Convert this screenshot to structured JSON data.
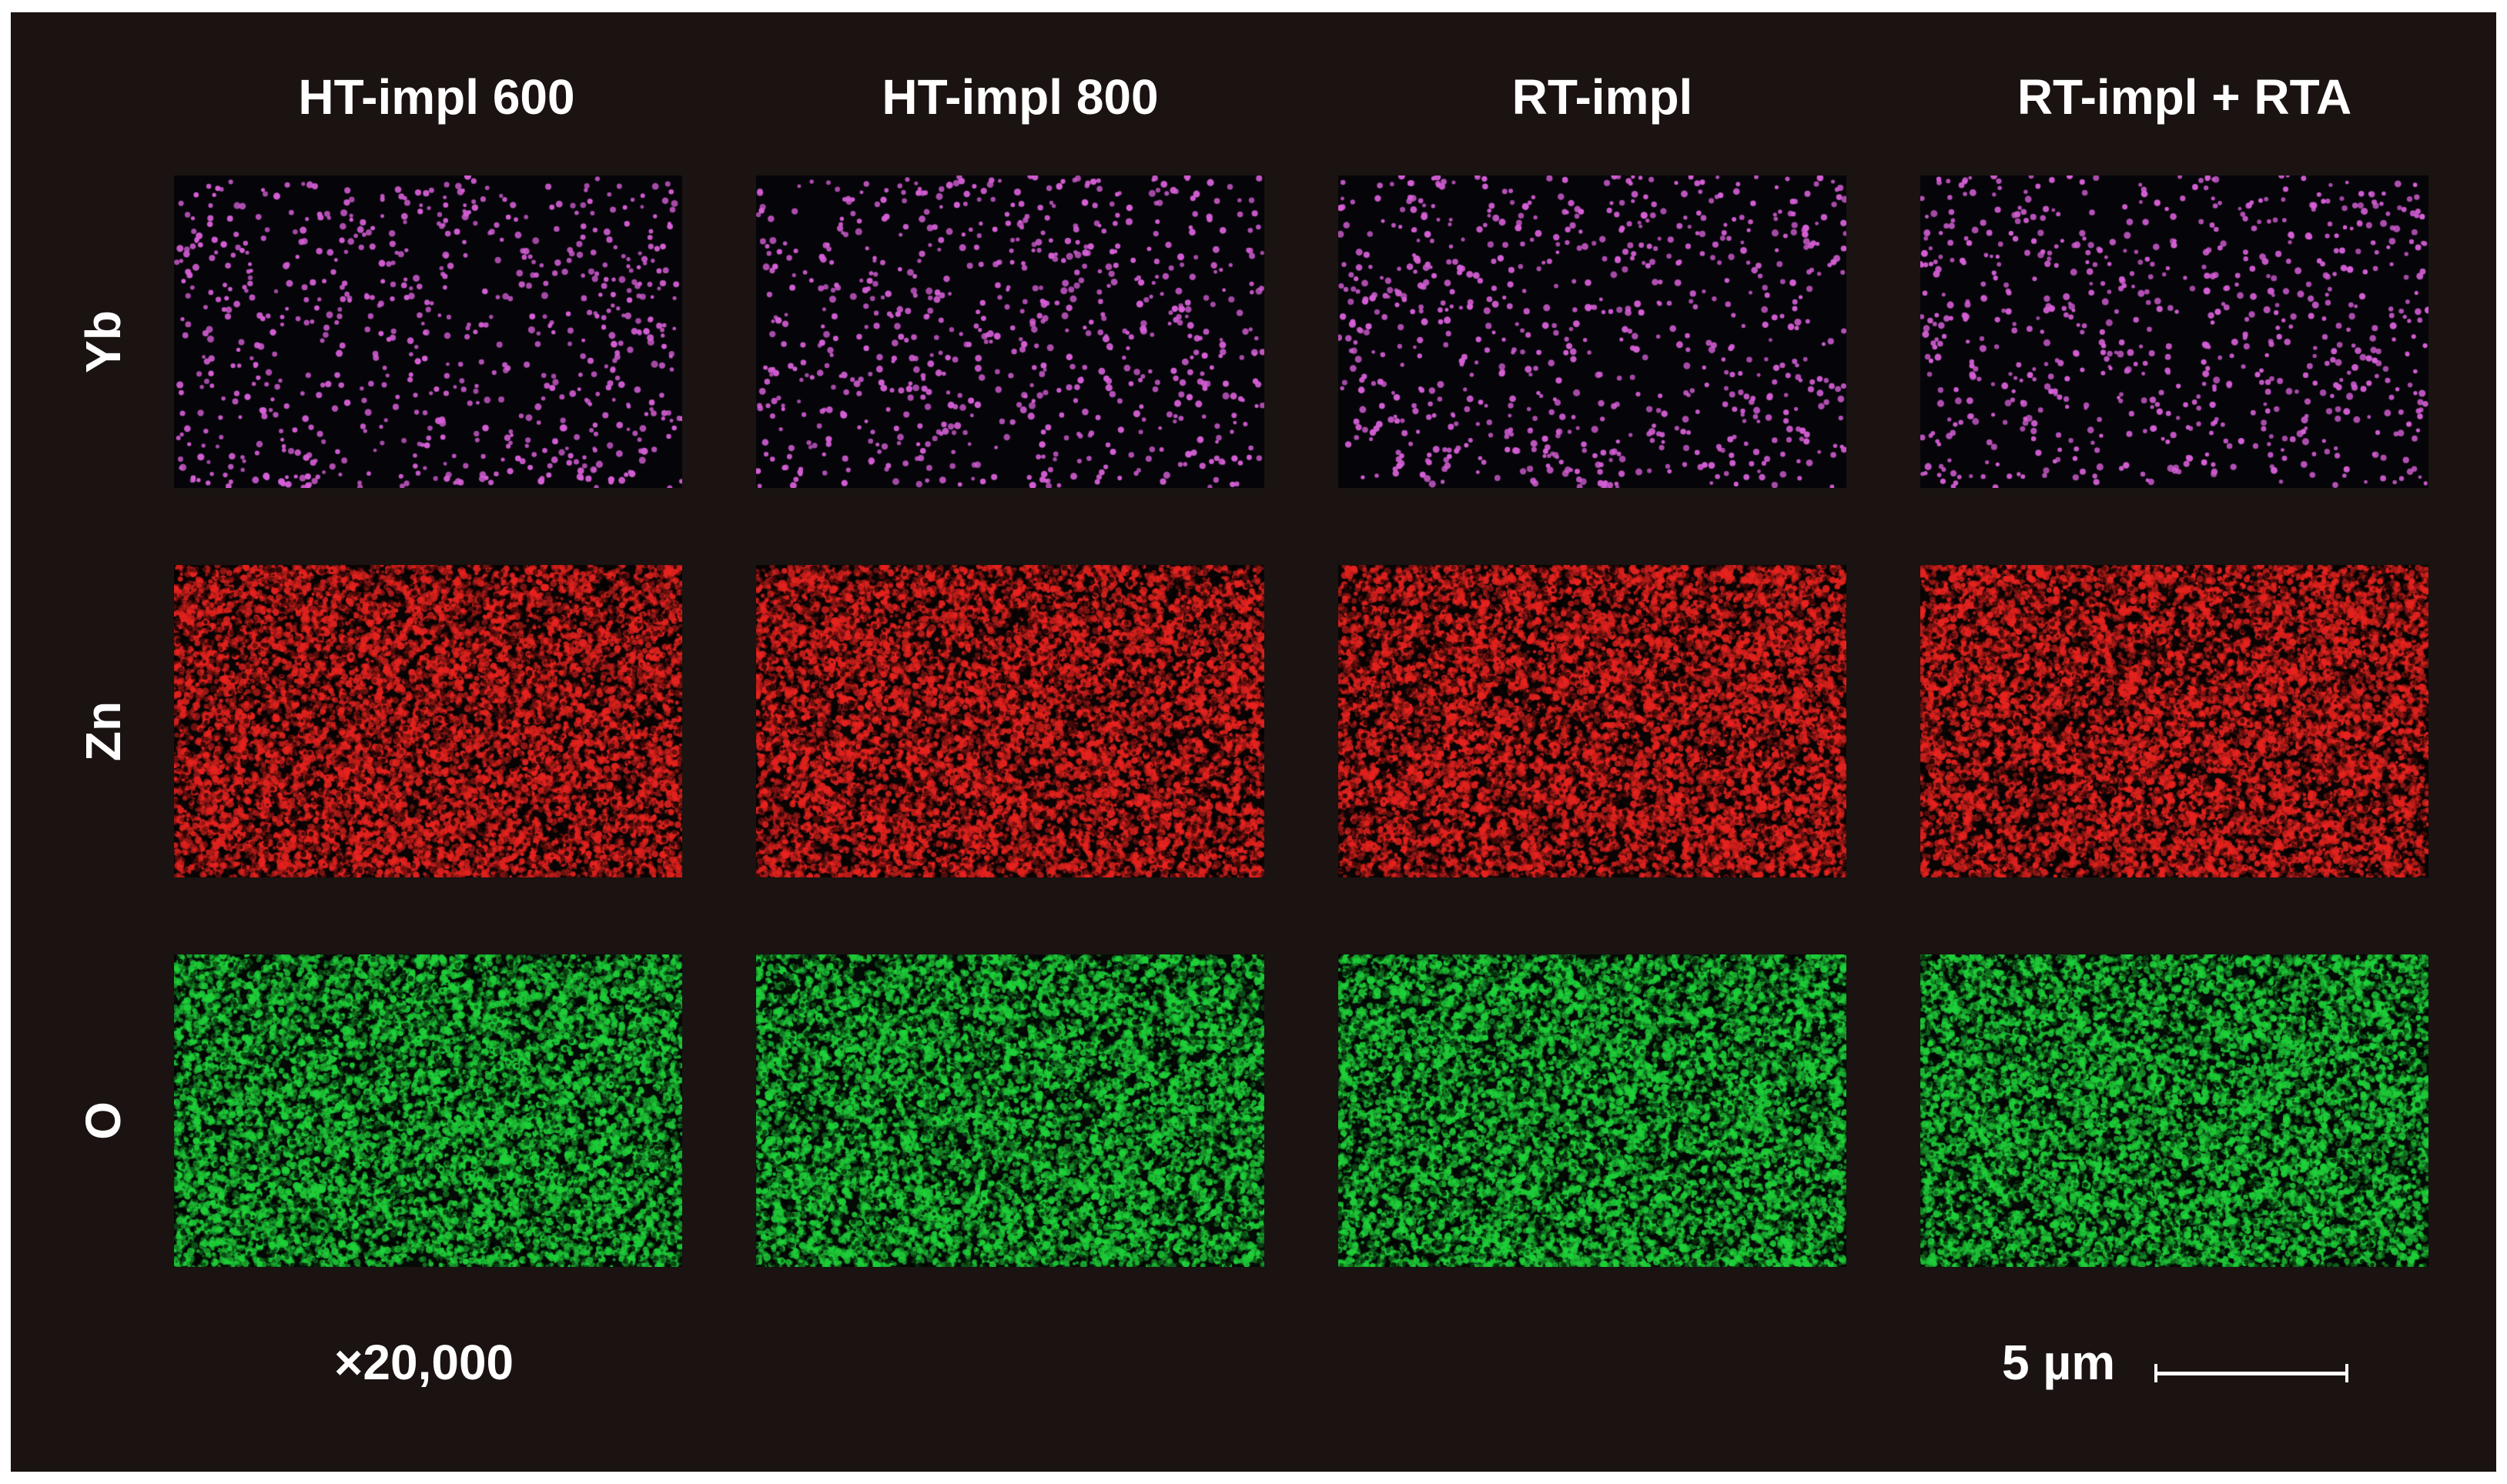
{
  "columns": [
    "HT-impl 600",
    "HT-impl 800",
    "RT-impl",
    "RT-impl + RTA"
  ],
  "rows": [
    {
      "element": "Yb",
      "color": "#d65fd6",
      "background": "#050509",
      "style": "sparse-dots"
    },
    {
      "element": "Zn",
      "color": "#e8231f",
      "background": "#0a0404",
      "style": "dense-noise"
    },
    {
      "element": "O",
      "color": "#1fd13a",
      "background": "#040a05",
      "style": "dense-noise"
    }
  ],
  "magnification": "×20,000",
  "scalebar": {
    "label": "5 µm"
  },
  "colors": {
    "figure_background": "#1a1311",
    "text": "#ffffff"
  }
}
